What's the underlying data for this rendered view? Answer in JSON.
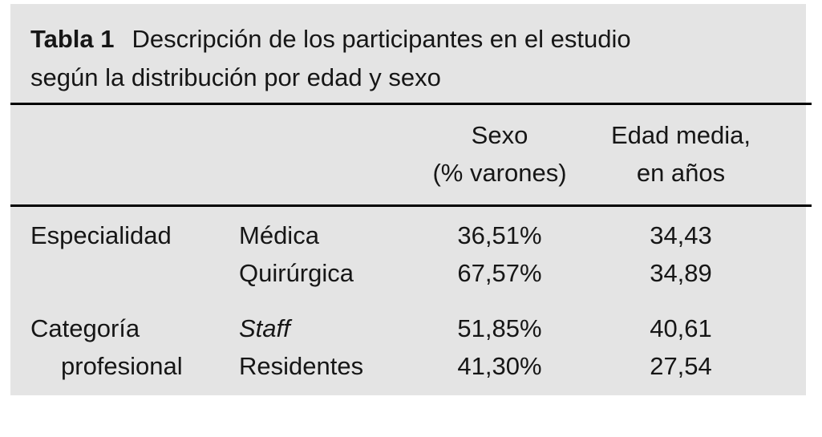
{
  "table": {
    "caption": {
      "label": "Tabla 1",
      "text": "Descripción de los participantes en el estudio\nsegún la distribución por edad y sexo"
    },
    "col_headers": {
      "sexo": {
        "line1": "Sexo",
        "line2": "(% varones)"
      },
      "edad": {
        "line1": "Edad media,",
        "line2": "en años"
      }
    },
    "rows": [
      {
        "group": "Especialidad",
        "item": "Médica",
        "sexo": "36,51%",
        "edad": "34,43"
      },
      {
        "group": "",
        "item": "Quirúrgica",
        "sexo": "67,57%",
        "edad": "34,89"
      },
      {
        "group": "Categoría",
        "item": "Staff",
        "sexo": "51,85%",
        "edad": "40,61"
      },
      {
        "group": "profesional",
        "item": "Residentes",
        "sexo": "41,30%",
        "edad": "27,54"
      }
    ],
    "colors": {
      "table_bg": "#e4e4e4",
      "page_bg": "#ffffff",
      "text": "#161616",
      "rule": "#000000"
    }
  }
}
